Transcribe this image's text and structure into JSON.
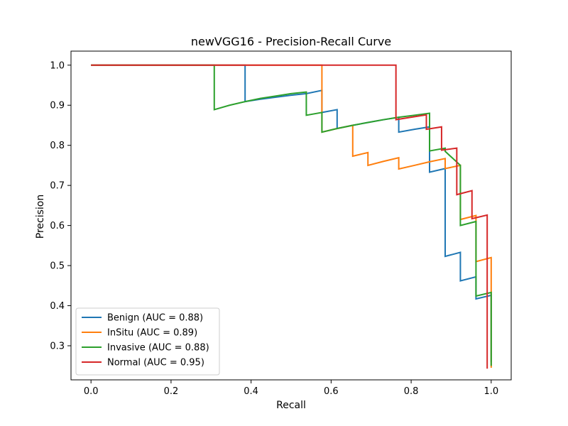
{
  "chart_data": {
    "type": "line",
    "title": "newVGG16 - Precision-Recall Curve",
    "xlabel": "Recall",
    "ylabel": "Precision",
    "xlim": [
      -0.05,
      1.05
    ],
    "ylim": [
      0.215,
      1.035
    ],
    "xticks": [
      0.0,
      0.2,
      0.4,
      0.6,
      0.8,
      1.0
    ],
    "xtick_labels": [
      "0.0",
      "0.2",
      "0.4",
      "0.6",
      "0.8",
      "1.0"
    ],
    "yticks": [
      0.3,
      0.4,
      0.5,
      0.6,
      0.7,
      0.8,
      0.9,
      1.0
    ],
    "ytick_labels": [
      "0.3",
      "0.4",
      "0.5",
      "0.6",
      "0.7",
      "0.8",
      "0.9",
      "1.0"
    ],
    "grid": false,
    "legend_position": "lower-left",
    "series": [
      {
        "name": "Benign (AUC = 0.88)",
        "color": "#1f77b4",
        "points": [
          [
            0,
            1
          ],
          [
            0.385,
            1
          ],
          [
            0.385,
            0.909
          ],
          [
            0.423,
            0.915
          ],
          [
            0.462,
            0.92
          ],
          [
            0.5,
            0.925
          ],
          [
            0.538,
            0.929
          ],
          [
            0.577,
            0.937
          ],
          [
            0.577,
            0.882
          ],
          [
            0.615,
            0.889
          ],
          [
            0.615,
            0.842
          ],
          [
            0.654,
            0.85
          ],
          [
            0.692,
            0.857
          ],
          [
            0.731,
            0.864
          ],
          [
            0.769,
            0.87
          ],
          [
            0.769,
            0.833
          ],
          [
            0.808,
            0.84
          ],
          [
            0.846,
            0.846
          ],
          [
            0.846,
            0.733
          ],
          [
            0.885,
            0.742
          ],
          [
            0.885,
            0.523
          ],
          [
            0.923,
            0.533
          ],
          [
            0.923,
            0.462
          ],
          [
            0.962,
            0.472
          ],
          [
            0.962,
            0.417
          ],
          [
            1,
            0.426
          ],
          [
            1,
            0.26
          ]
        ]
      },
      {
        "name": "InSitu (AUC = 0.89)",
        "color": "#ff7f0e",
        "points": [
          [
            0,
            1
          ],
          [
            0.577,
            1
          ],
          [
            0.577,
            0.833
          ],
          [
            0.615,
            0.842
          ],
          [
            0.654,
            0.85
          ],
          [
            0.654,
            0.773
          ],
          [
            0.692,
            0.782
          ],
          [
            0.692,
            0.75
          ],
          [
            0.731,
            0.76
          ],
          [
            0.769,
            0.769
          ],
          [
            0.769,
            0.741
          ],
          [
            0.808,
            0.75
          ],
          [
            0.846,
            0.759
          ],
          [
            0.885,
            0.767
          ],
          [
            0.885,
            0.742
          ],
          [
            0.923,
            0.75
          ],
          [
            0.923,
            0.615
          ],
          [
            0.962,
            0.625
          ],
          [
            0.962,
            0.51
          ],
          [
            1,
            0.52
          ],
          [
            1,
            0.245
          ]
        ]
      },
      {
        "name": "Invasive (AUC = 0.88)",
        "color": "#2ca02c",
        "points": [
          [
            0,
            1
          ],
          [
            0.308,
            1
          ],
          [
            0.308,
            0.889
          ],
          [
            0.346,
            0.9
          ],
          [
            0.385,
            0.909
          ],
          [
            0.423,
            0.917
          ],
          [
            0.462,
            0.923
          ],
          [
            0.5,
            0.929
          ],
          [
            0.538,
            0.933
          ],
          [
            0.538,
            0.875
          ],
          [
            0.577,
            0.882
          ],
          [
            0.577,
            0.833
          ],
          [
            0.615,
            0.842
          ],
          [
            0.654,
            0.85
          ],
          [
            0.692,
            0.857
          ],
          [
            0.731,
            0.864
          ],
          [
            0.769,
            0.87
          ],
          [
            0.808,
            0.875
          ],
          [
            0.846,
            0.88
          ],
          [
            0.846,
            0.786
          ],
          [
            0.885,
            0.793
          ],
          [
            0.885,
            0.785
          ],
          [
            0.923,
            0.75
          ],
          [
            0.923,
            0.6
          ],
          [
            0.962,
            0.61
          ],
          [
            0.962,
            0.424
          ],
          [
            1,
            0.433
          ],
          [
            1,
            0.25
          ]
        ]
      },
      {
        "name": "Normal (AUC = 0.95)",
        "color": "#d62728",
        "points": [
          [
            0,
            1
          ],
          [
            0.762,
            1
          ],
          [
            0.762,
            0.864
          ],
          [
            0.8,
            0.87
          ],
          [
            0.838,
            0.876
          ],
          [
            0.838,
            0.84
          ],
          [
            0.876,
            0.846
          ],
          [
            0.876,
            0.788
          ],
          [
            0.914,
            0.793
          ],
          [
            0.914,
            0.677
          ],
          [
            0.952,
            0.687
          ],
          [
            0.952,
            0.617
          ],
          [
            0.99,
            0.626
          ],
          [
            0.99,
            0.243
          ]
        ]
      }
    ]
  }
}
